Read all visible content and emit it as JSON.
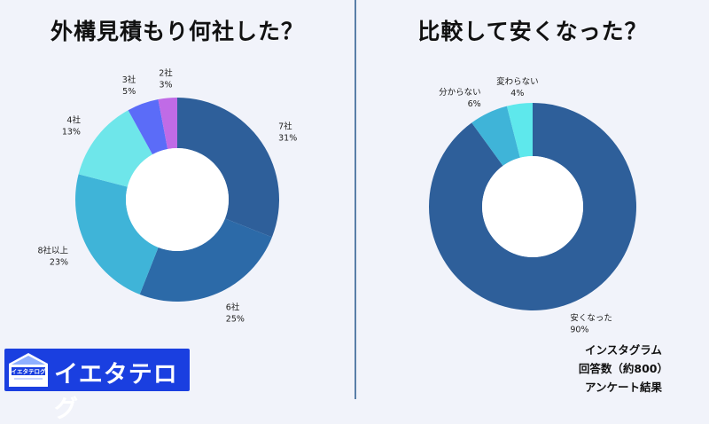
{
  "chart_data": [
    {
      "type": "pie",
      "title": "外構見積もり何社した？",
      "categories": [
        "7社",
        "6社",
        "8社以上",
        "4社",
        "3社",
        "2社"
      ],
      "values": [
        31,
        25,
        23,
        13,
        5,
        3
      ],
      "colors": [
        "#2e5f9a",
        "#2c6aa8",
        "#3fb4d8",
        "#6ee6ea",
        "#5b6cf8",
        "#c06be6"
      ],
      "value_suffix": "%"
    },
    {
      "type": "pie",
      "title": "比較して安くなった？",
      "categories": [
        "安くなった",
        "分からない",
        "変わらない"
      ],
      "values": [
        90,
        6,
        4
      ],
      "colors": [
        "#2e5f9a",
        "#3fb4d8",
        "#5ee8ec"
      ],
      "value_suffix": "%"
    }
  ],
  "logo": {
    "badge_text": "イエタテログ",
    "brand_text": "イエタテログ"
  },
  "note": {
    "line1": "インスタグラム",
    "line2": "回答数（約800）",
    "line3": "アンケート結果"
  }
}
